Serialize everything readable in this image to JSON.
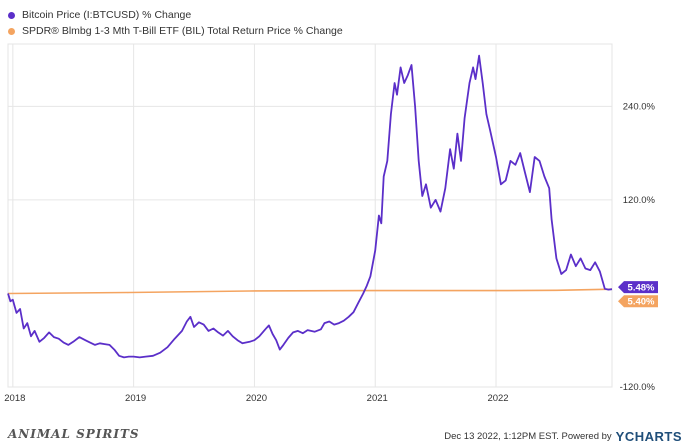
{
  "legend": {
    "items": [
      {
        "label": "Bitcoin Price (I:BTCUSD) % Change",
        "color": "#5b2fc9"
      },
      {
        "label": "SPDR® Blmbg 1-3 Mth T-Bill ETF (BIL) Total Return Price % Change",
        "color": "#f4a460"
      }
    ]
  },
  "chart_data": {
    "type": "line",
    "title": "",
    "xlabel": "",
    "ylabel": "",
    "x_tick_labels": [
      "2018",
      "2019",
      "2020",
      "2021",
      "2022"
    ],
    "y_tick_labels": [
      "240.0%",
      "120.0%",
      "-120.0%"
    ],
    "y_ticks": [
      240,
      120,
      -120
    ],
    "ylim": [
      -120,
      320
    ],
    "xlim": [
      2017.96,
      2022.96
    ],
    "grid": "horizontal-and-vertical",
    "series": [
      {
        "name": "Bitcoin Price (I:BTCUSD) % Change",
        "color": "#5b2fc9",
        "end_label": "5.48%",
        "points": [
          [
            2017.96,
            0
          ],
          [
            2017.98,
            -10
          ],
          [
            2018.0,
            -8
          ],
          [
            2018.03,
            -25
          ],
          [
            2018.06,
            -20
          ],
          [
            2018.09,
            -45
          ],
          [
            2018.12,
            -38
          ],
          [
            2018.15,
            -55
          ],
          [
            2018.18,
            -48
          ],
          [
            2018.22,
            -62
          ],
          [
            2018.26,
            -57
          ],
          [
            2018.3,
            -50
          ],
          [
            2018.34,
            -56
          ],
          [
            2018.38,
            -58
          ],
          [
            2018.42,
            -63
          ],
          [
            2018.46,
            -66
          ],
          [
            2018.5,
            -62
          ],
          [
            2018.55,
            -56
          ],
          [
            2018.6,
            -60
          ],
          [
            2018.64,
            -63
          ],
          [
            2018.68,
            -66
          ],
          [
            2018.72,
            -64
          ],
          [
            2018.76,
            -65
          ],
          [
            2018.8,
            -66
          ],
          [
            2018.84,
            -72
          ],
          [
            2018.88,
            -80
          ],
          [
            2018.92,
            -82
          ],
          [
            2018.96,
            -81
          ],
          [
            2019.0,
            -81
          ],
          [
            2019.05,
            -82
          ],
          [
            2019.1,
            -81
          ],
          [
            2019.16,
            -80
          ],
          [
            2019.22,
            -76
          ],
          [
            2019.28,
            -69
          ],
          [
            2019.34,
            -58
          ],
          [
            2019.4,
            -48
          ],
          [
            2019.44,
            -36
          ],
          [
            2019.47,
            -30
          ],
          [
            2019.5,
            -43
          ],
          [
            2019.54,
            -37
          ],
          [
            2019.58,
            -40
          ],
          [
            2019.62,
            -48
          ],
          [
            2019.66,
            -45
          ],
          [
            2019.7,
            -50
          ],
          [
            2019.74,
            -54
          ],
          [
            2019.78,
            -48
          ],
          [
            2019.82,
            -55
          ],
          [
            2019.86,
            -60
          ],
          [
            2019.9,
            -64
          ],
          [
            2019.96,
            -62
          ],
          [
            2020.0,
            -60
          ],
          [
            2020.04,
            -55
          ],
          [
            2020.09,
            -46
          ],
          [
            2020.12,
            -41
          ],
          [
            2020.15,
            -52
          ],
          [
            2020.18,
            -60
          ],
          [
            2020.21,
            -72
          ],
          [
            2020.24,
            -66
          ],
          [
            2020.28,
            -57
          ],
          [
            2020.32,
            -50
          ],
          [
            2020.36,
            -48
          ],
          [
            2020.4,
            -51
          ],
          [
            2020.44,
            -47
          ],
          [
            2020.5,
            -49
          ],
          [
            2020.55,
            -46
          ],
          [
            2020.58,
            -38
          ],
          [
            2020.62,
            -36
          ],
          [
            2020.66,
            -40
          ],
          [
            2020.7,
            -38
          ],
          [
            2020.74,
            -35
          ],
          [
            2020.78,
            -30
          ],
          [
            2020.82,
            -24
          ],
          [
            2020.86,
            -12
          ],
          [
            2020.9,
            0
          ],
          [
            2020.93,
            10
          ],
          [
            2020.96,
            22
          ],
          [
            2021.0,
            55
          ],
          [
            2021.03,
            100
          ],
          [
            2021.05,
            90
          ],
          [
            2021.07,
            150
          ],
          [
            2021.1,
            170
          ],
          [
            2021.13,
            230
          ],
          [
            2021.16,
            270
          ],
          [
            2021.18,
            255
          ],
          [
            2021.21,
            290
          ],
          [
            2021.24,
            270
          ],
          [
            2021.27,
            280
          ],
          [
            2021.3,
            293
          ],
          [
            2021.33,
            240
          ],
          [
            2021.36,
            170
          ],
          [
            2021.39,
            125
          ],
          [
            2021.42,
            140
          ],
          [
            2021.46,
            110
          ],
          [
            2021.5,
            120
          ],
          [
            2021.54,
            105
          ],
          [
            2021.58,
            135
          ],
          [
            2021.62,
            185
          ],
          [
            2021.65,
            160
          ],
          [
            2021.68,
            205
          ],
          [
            2021.71,
            170
          ],
          [
            2021.74,
            225
          ],
          [
            2021.78,
            270
          ],
          [
            2021.81,
            290
          ],
          [
            2021.83,
            275
          ],
          [
            2021.86,
            305
          ],
          [
            2021.89,
            270
          ],
          [
            2021.92,
            230
          ],
          [
            2021.95,
            210
          ],
          [
            2022.0,
            175
          ],
          [
            2022.04,
            140
          ],
          [
            2022.08,
            145
          ],
          [
            2022.12,
            170
          ],
          [
            2022.16,
            165
          ],
          [
            2022.2,
            180
          ],
          [
            2022.24,
            155
          ],
          [
            2022.28,
            130
          ],
          [
            2022.32,
            175
          ],
          [
            2022.36,
            170
          ],
          [
            2022.4,
            150
          ],
          [
            2022.44,
            135
          ],
          [
            2022.46,
            95
          ],
          [
            2022.5,
            45
          ],
          [
            2022.54,
            25
          ],
          [
            2022.58,
            30
          ],
          [
            2022.62,
            50
          ],
          [
            2022.66,
            35
          ],
          [
            2022.7,
            45
          ],
          [
            2022.74,
            32
          ],
          [
            2022.78,
            30
          ],
          [
            2022.82,
            40
          ],
          [
            2022.86,
            28
          ],
          [
            2022.9,
            6
          ],
          [
            2022.93,
            5
          ],
          [
            2022.96,
            5.48
          ]
        ]
      },
      {
        "name": "SPDR® Blmbg 1-3 Mth T-Bill ETF (BIL) Total Return Price % Change",
        "color": "#f4a460",
        "end_label": "5.40%",
        "points": [
          [
            2017.96,
            0
          ],
          [
            2018.96,
            1.2
          ],
          [
            2019.96,
            3.2
          ],
          [
            2020.96,
            3.6
          ],
          [
            2021.96,
            3.7
          ],
          [
            2022.5,
            4.0
          ],
          [
            2022.96,
            5.4
          ]
        ]
      }
    ]
  },
  "footer": {
    "watermark": "ANIMAL SPIRITS",
    "note": "Dec 13 2022, 1:12PM EST. Powered by",
    "brand": "YCHARTS"
  }
}
